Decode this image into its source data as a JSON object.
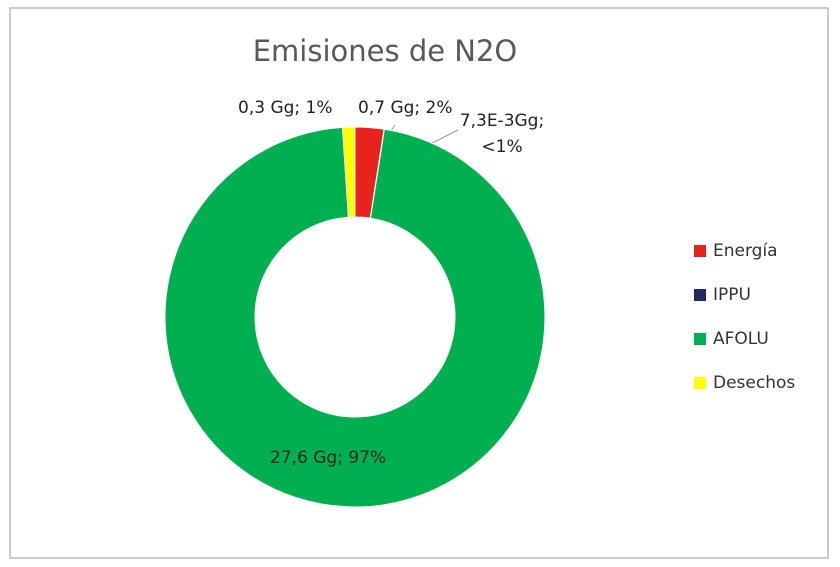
{
  "chart_data": {
    "type": "pie",
    "donut": true,
    "title": "Emisiones de N2O",
    "categories": [
      "Energía",
      "IPPU",
      "AFOLU",
      "Desechos"
    ],
    "values": [
      0.7,
      0.0073,
      27.6,
      0.3
    ],
    "value_labels": [
      "0,7 Gg; 2%",
      "7,3E-3Gg; <1%",
      "27,6 Gg; 97%",
      "0,3 Gg; 1%"
    ],
    "colors": [
      "#e8231f",
      "#1f2a66",
      "#00b050",
      "#ffff00"
    ],
    "legend": "right"
  }
}
